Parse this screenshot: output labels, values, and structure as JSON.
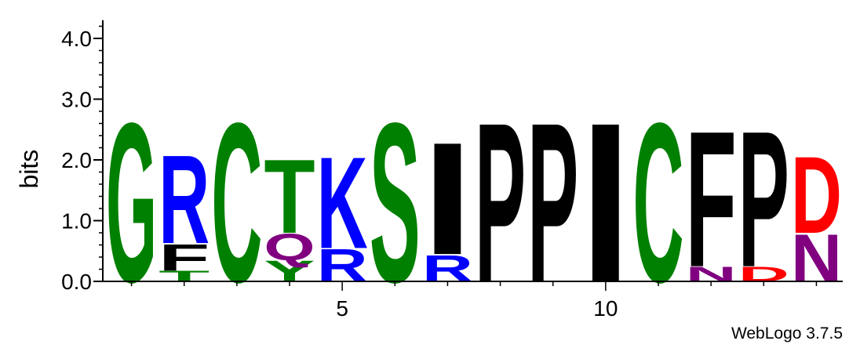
{
  "chart_data": {
    "type": "sequence-logo",
    "ylabel": "bits",
    "ylim": [
      0,
      4.3
    ],
    "yticks": [
      {
        "value": 0.0,
        "label": "0.0"
      },
      {
        "value": 1.0,
        "label": "1.0"
      },
      {
        "value": 2.0,
        "label": "2.0"
      },
      {
        "value": 3.0,
        "label": "3.0"
      },
      {
        "value": 4.0,
        "label": "4.0"
      }
    ],
    "positions_count": 14,
    "xticks": [
      {
        "position": 5,
        "label": "5"
      },
      {
        "position": 10,
        "label": "10"
      }
    ],
    "colors": {
      "green": "#008000",
      "blue": "#0000ff",
      "black": "#000000",
      "purple": "#800080",
      "red": "#ff0000"
    },
    "stacks": [
      {
        "position": 1,
        "letters": [
          {
            "char": "G",
            "bits": 2.7,
            "color": "#008000"
          }
        ]
      },
      {
        "position": 2,
        "letters": [
          {
            "char": "T",
            "bits": 0.18,
            "color": "#008000"
          },
          {
            "char": "F",
            "bits": 0.45,
            "color": "#000000"
          },
          {
            "char": "R",
            "bits": 1.5,
            "color": "#0000ff"
          }
        ]
      },
      {
        "position": 3,
        "letters": [
          {
            "char": "C",
            "bits": 2.7,
            "color": "#008000"
          }
        ]
      },
      {
        "position": 4,
        "letters": [
          {
            "char": "Y",
            "bits": 0.35,
            "color": "#008000"
          },
          {
            "char": "Q",
            "bits": 0.45,
            "color": "#800080"
          },
          {
            "char": "T",
            "bits": 1.25,
            "color": "#008000"
          }
        ]
      },
      {
        "position": 5,
        "letters": [
          {
            "char": "R",
            "bits": 0.55,
            "color": "#0000ff"
          },
          {
            "char": "K",
            "bits": 1.55,
            "color": "#0000ff"
          }
        ]
      },
      {
        "position": 6,
        "letters": [
          {
            "char": "S",
            "bits": 2.7,
            "color": "#008000"
          }
        ]
      },
      {
        "position": 7,
        "letters": [
          {
            "char": "R",
            "bits": 0.45,
            "color": "#0000ff"
          },
          {
            "char": "I",
            "bits": 1.9,
            "color": "#000000"
          }
        ]
      },
      {
        "position": 8,
        "letters": [
          {
            "char": "P",
            "bits": 2.7,
            "color": "#000000"
          }
        ]
      },
      {
        "position": 9,
        "letters": [
          {
            "char": "P",
            "bits": 2.7,
            "color": "#000000"
          }
        ]
      },
      {
        "position": 10,
        "letters": [
          {
            "char": "I",
            "bits": 2.7,
            "color": "#000000"
          }
        ]
      },
      {
        "position": 11,
        "letters": [
          {
            "char": "C",
            "bits": 2.7,
            "color": "#008000"
          }
        ]
      },
      {
        "position": 12,
        "letters": [
          {
            "char": "N",
            "bits": 0.25,
            "color": "#800080"
          },
          {
            "char": "F",
            "bits": 2.3,
            "color": "#000000"
          }
        ]
      },
      {
        "position": 13,
        "letters": [
          {
            "char": "D",
            "bits": 0.25,
            "color": "#ff0000"
          },
          {
            "char": "P",
            "bits": 2.3,
            "color": "#000000"
          }
        ]
      },
      {
        "position": 14,
        "letters": [
          {
            "char": "N",
            "bits": 0.8,
            "color": "#800080"
          },
          {
            "char": "D",
            "bits": 1.3,
            "color": "#ff0000"
          }
        ]
      }
    ]
  },
  "footer": {
    "credit": "WebLogo 3.7.5"
  }
}
